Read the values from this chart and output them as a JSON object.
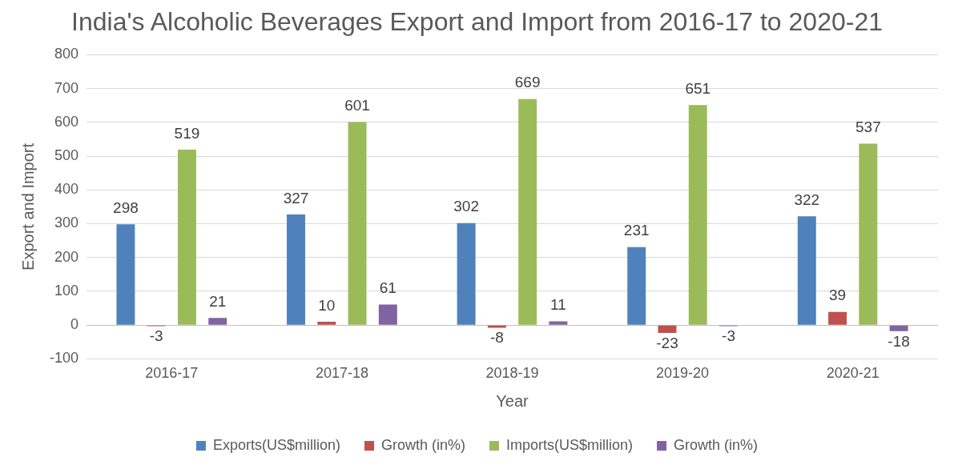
{
  "chart_data": {
    "type": "bar",
    "title": "India's Alcoholic Beverages Export and Import from 2016-17 to 2020-21",
    "xlabel": "Year",
    "ylabel": "Export and Import",
    "categories": [
      "2016-17",
      "2017-18",
      "2018-19",
      "2019-20",
      "2020-21"
    ],
    "series": [
      {
        "name": "Exports(US$million)",
        "color": "#4f81bd",
        "values": [
          298,
          327,
          302,
          231,
          322
        ]
      },
      {
        "name": "Growth (in%)",
        "color": "#c0504d",
        "values": [
          -3,
          10,
          -8,
          -23,
          39
        ]
      },
      {
        "name": "Imports(US$million)",
        "color": "#9bbb59",
        "values": [
          519,
          601,
          669,
          651,
          537
        ]
      },
      {
        "name": "Growth (in%)",
        "color": "#8064a2",
        "values": [
          21,
          61,
          11,
          -3,
          -18
        ]
      }
    ],
    "ylim": [
      -100,
      800
    ],
    "yticks": [
      -100,
      0,
      100,
      200,
      300,
      400,
      500,
      600,
      700,
      800
    ],
    "grid": "y",
    "legend": "bottom",
    "data_labels": true
  }
}
